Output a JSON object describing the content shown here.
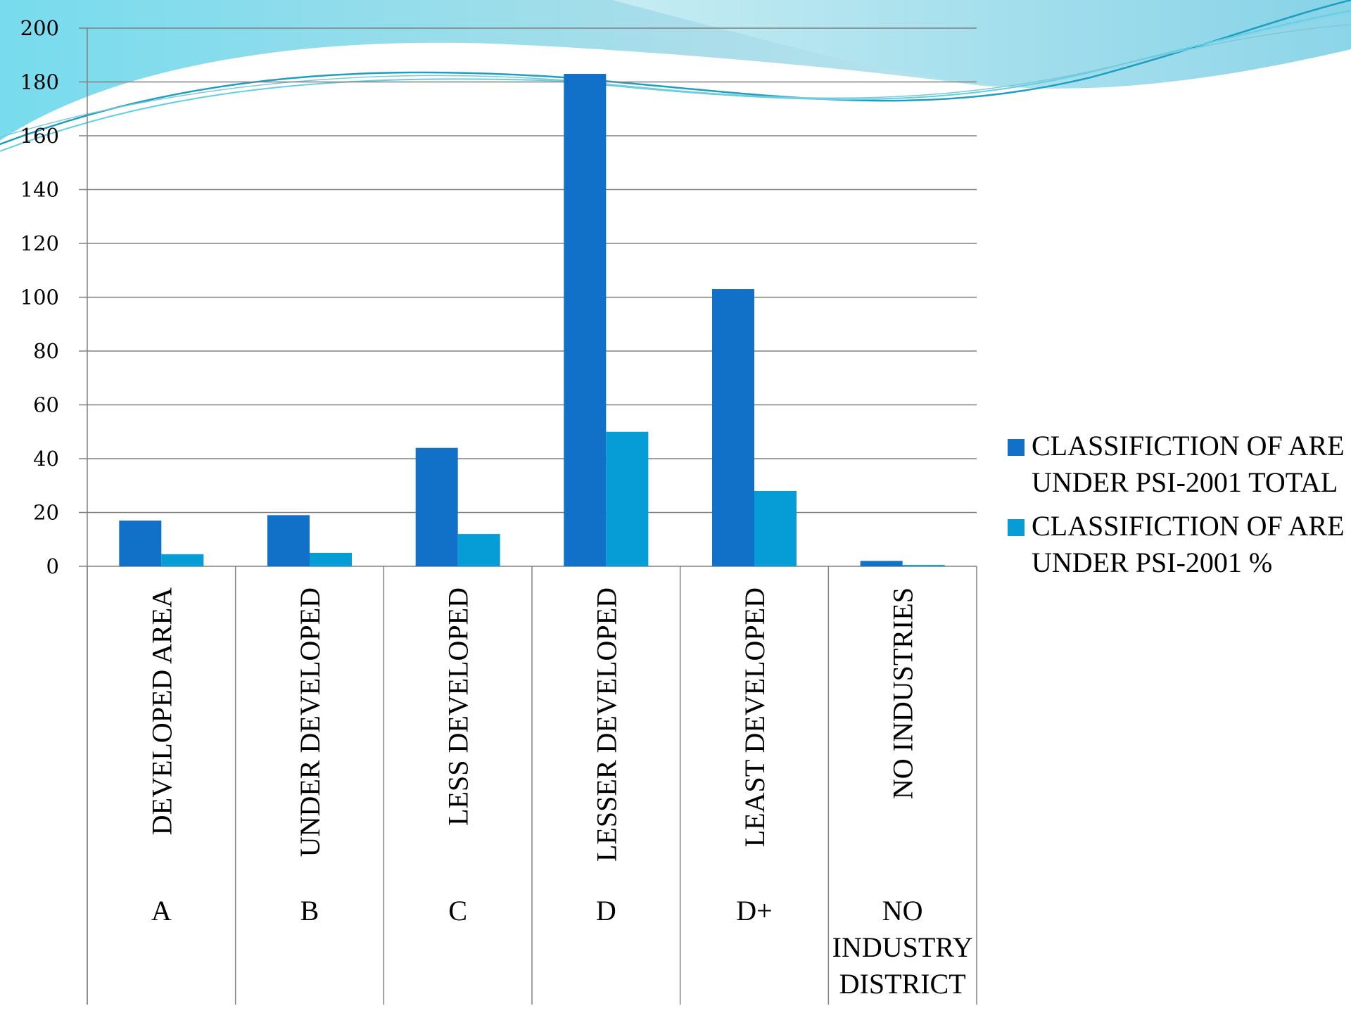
{
  "colors": {
    "series_total": "#1170c8",
    "series_percent": "#069dd6",
    "grid": "#808080",
    "wave_light": "#a8e2ec",
    "wave_mid": "#62cfe4",
    "wave_dark": "#1e9fc0"
  },
  "decoration": {
    "icon": "wave-banner-icon"
  },
  "chart_data": {
    "type": "bar",
    "categories": [
      {
        "name": "DEVELOPED AREA",
        "code": [
          "A"
        ]
      },
      {
        "name": "UNDER DEVELOPED",
        "code": [
          "B"
        ]
      },
      {
        "name": "LESS DEVELOPED",
        "code": [
          "C"
        ]
      },
      {
        "name": "LESSER DEVELOPED",
        "code": [
          "D"
        ]
      },
      {
        "name": "LEAST DEVELOPED",
        "code": [
          "D+"
        ]
      },
      {
        "name": "NO INDUSTRIES",
        "code": [
          "NO",
          "INDUSTRY",
          "DISTRICT"
        ]
      }
    ],
    "series": [
      {
        "name_lines": [
          "CLASSIFICTION OF ARE",
          "UNDER PSI-2001 TOTAL"
        ],
        "values": [
          17,
          19,
          44,
          183,
          103,
          2
        ]
      },
      {
        "name_lines": [
          "CLASSIFICTION OF ARE",
          "UNDER PSI-2001 %"
        ],
        "values": [
          4.5,
          5,
          12,
          50,
          28,
          0.5
        ]
      }
    ],
    "ylim": [
      0,
      200
    ],
    "yticks": [
      "0",
      "20",
      "40",
      "60",
      "80",
      "100",
      "120",
      "140",
      "160",
      "180",
      "200"
    ],
    "grid": true,
    "legend_position": "right"
  }
}
